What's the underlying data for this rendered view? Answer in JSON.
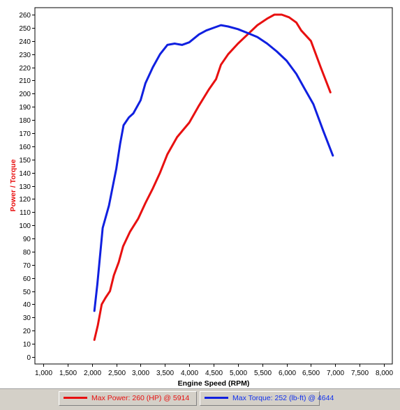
{
  "colors": {
    "power": "#e81010",
    "torque": "#1020e0",
    "grid": "#9a9a9a"
  },
  "legend": {
    "power_label": "Max Power: 260 (HP) @ 5914",
    "torque_label": "Max Torque: 252 (lb-ft) @ 4644"
  },
  "chart_data": {
    "type": "line",
    "title": "",
    "xlabel": "Engine Speed (RPM)",
    "ylabel": "Power / Torque",
    "xlim": [
      1000,
      8000
    ],
    "ylim": [
      0,
      260
    ],
    "x_ticks": [
      1000,
      1500,
      2000,
      2500,
      3000,
      3500,
      4000,
      4500,
      5000,
      5500,
      6000,
      6500,
      7000,
      7500,
      8000
    ],
    "x_tick_labels": [
      "1,000",
      "1,500",
      "2,000",
      "2,500",
      "3,000",
      "3,500",
      "4,000",
      "4,500",
      "5,000",
      "5,500",
      "6,000",
      "6,500",
      "7,000",
      "7,500",
      "8,000"
    ],
    "y_ticks": [
      0,
      10,
      20,
      30,
      40,
      50,
      60,
      70,
      80,
      90,
      100,
      110,
      120,
      130,
      140,
      150,
      160,
      170,
      180,
      190,
      200,
      210,
      220,
      230,
      240,
      250,
      260
    ],
    "grid": true,
    "legend_position": "bottom",
    "series": [
      {
        "name": "Max Power: 260 (HP) @ 5914",
        "x": [
          2050,
          2120,
          2200,
          2280,
          2370,
          2450,
          2550,
          2640,
          2780,
          2950,
          3100,
          3250,
          3400,
          3550,
          3750,
          4000,
          4200,
          4400,
          4550,
          4650,
          4800,
          5000,
          5200,
          5400,
          5600,
          5750,
          5900,
          6050,
          6200,
          6300,
          6500,
          6700,
          6900
        ],
        "y": [
          13,
          24,
          40,
          45,
          50,
          62,
          72,
          84,
          95,
          105,
          117,
          128,
          140,
          154,
          167,
          178,
          191,
          203,
          211,
          222,
          230,
          238,
          245,
          252,
          257,
          260,
          260,
          258,
          254,
          248,
          240,
          220,
          201
        ]
      },
      {
        "name": "Max Torque: 252 (lb-ft) @ 4644",
        "x": [
          2050,
          2110,
          2220,
          2350,
          2430,
          2500,
          2580,
          2650,
          2760,
          2850,
          3000,
          3100,
          3250,
          3400,
          3550,
          3700,
          3850,
          4000,
          4200,
          4350,
          4500,
          4650,
          4800,
          5000,
          5200,
          5400,
          5600,
          5800,
          6000,
          6200,
          6350,
          6550,
          6750,
          6950
        ],
        "y": [
          35,
          55,
          98,
          115,
          130,
          143,
          162,
          176,
          182,
          185,
          195,
          208,
          220,
          230,
          237,
          238,
          237,
          239,
          245,
          248,
          250,
          252,
          251,
          249,
          246,
          243,
          238,
          232,
          225,
          215,
          205,
          192,
          172,
          153
        ]
      }
    ]
  }
}
